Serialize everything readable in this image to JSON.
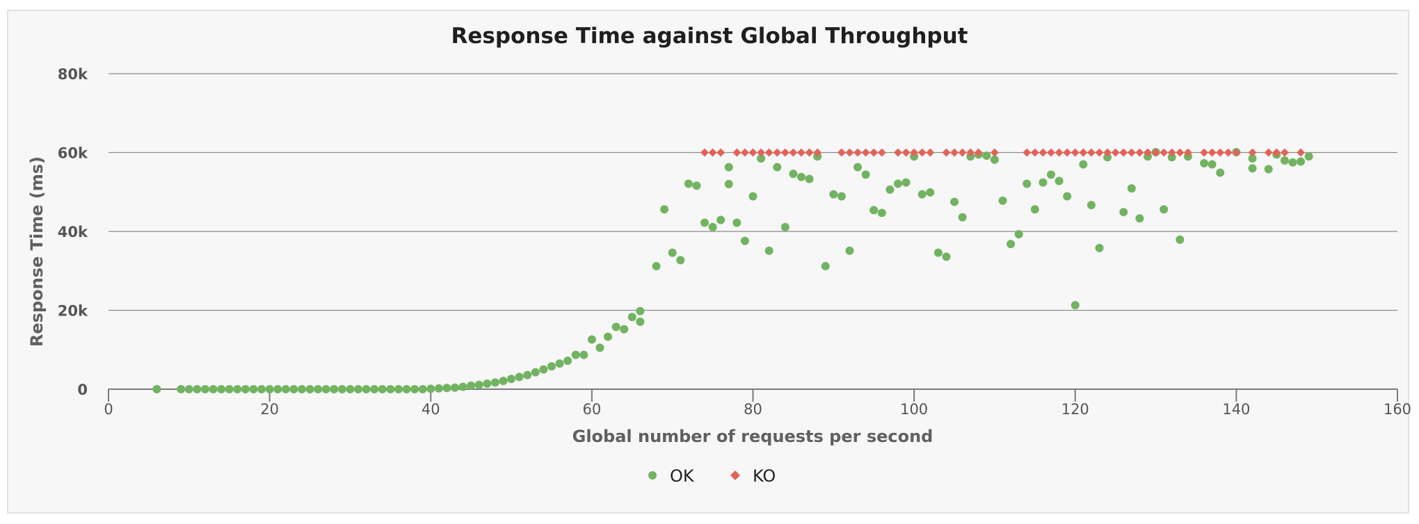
{
  "chart_data": {
    "type": "scatter",
    "title": "Response Time against Global Throughput",
    "xlabel": "Global number of requests per second",
    "ylabel": "Response Time (ms)",
    "xlim": [
      0,
      160
    ],
    "ylim": [
      0,
      80000
    ],
    "x_ticks": [
      "0",
      "20",
      "40",
      "60",
      "80",
      "100",
      "120",
      "140",
      "160"
    ],
    "y_ticks": [
      "0",
      "20k",
      "40k",
      "60k",
      "80k"
    ],
    "grid": true,
    "legend_position": "bottom-center",
    "series": [
      {
        "name": "OK",
        "color": "#72b362",
        "marker": "circle",
        "points": [
          [
            6,
            0
          ],
          [
            9,
            0
          ],
          [
            10,
            0
          ],
          [
            11,
            0
          ],
          [
            12,
            0
          ],
          [
            13,
            0
          ],
          [
            14,
            0
          ],
          [
            15,
            0
          ],
          [
            16,
            0
          ],
          [
            17,
            0
          ],
          [
            18,
            0
          ],
          [
            19,
            0
          ],
          [
            20,
            0
          ],
          [
            21,
            0
          ],
          [
            22,
            0
          ],
          [
            23,
            0
          ],
          [
            24,
            0
          ],
          [
            25,
            0
          ],
          [
            26,
            0
          ],
          [
            27,
            0
          ],
          [
            28,
            0
          ],
          [
            29,
            0
          ],
          [
            30,
            0
          ],
          [
            31,
            0
          ],
          [
            32,
            0
          ],
          [
            33,
            0
          ],
          [
            34,
            0
          ],
          [
            35,
            0
          ],
          [
            36,
            0
          ],
          [
            37,
            0
          ],
          [
            38,
            0
          ],
          [
            39,
            0
          ],
          [
            40,
            100
          ],
          [
            41,
            200
          ],
          [
            42,
            300
          ],
          [
            43,
            400
          ],
          [
            44,
            600
          ],
          [
            45,
            900
          ],
          [
            46,
            1100
          ],
          [
            47,
            1400
          ],
          [
            48,
            1700
          ],
          [
            49,
            2100
          ],
          [
            50,
            2600
          ],
          [
            51,
            3100
          ],
          [
            52,
            3600
          ],
          [
            53,
            4300
          ],
          [
            54,
            5000
          ],
          [
            55,
            5800
          ],
          [
            56,
            6500
          ],
          [
            57,
            7200
          ],
          [
            58,
            8700
          ],
          [
            59,
            8700
          ],
          [
            60,
            12600
          ],
          [
            61,
            10500
          ],
          [
            62,
            13300
          ],
          [
            63,
            15800
          ],
          [
            64,
            15200
          ],
          [
            65,
            18300
          ],
          [
            66,
            17100
          ],
          [
            66,
            19800
          ],
          [
            68,
            31200
          ],
          [
            69,
            45600
          ],
          [
            70,
            34600
          ],
          [
            71,
            32700
          ],
          [
            72,
            52100
          ],
          [
            73,
            51600
          ],
          [
            74,
            42200
          ],
          [
            75,
            41100
          ],
          [
            76,
            42900
          ],
          [
            77,
            56300
          ],
          [
            77,
            52000
          ],
          [
            78,
            42200
          ],
          [
            79,
            37600
          ],
          [
            80,
            48900
          ],
          [
            81,
            58500
          ],
          [
            82,
            35100
          ],
          [
            83,
            56300
          ],
          [
            84,
            41100
          ],
          [
            85,
            54600
          ],
          [
            86,
            53800
          ],
          [
            87,
            53300
          ],
          [
            88,
            59000
          ],
          [
            89,
            31200
          ],
          [
            90,
            49400
          ],
          [
            91,
            48900
          ],
          [
            92,
            35100
          ],
          [
            93,
            56300
          ],
          [
            94,
            54400
          ],
          [
            95,
            45400
          ],
          [
            96,
            44700
          ],
          [
            97,
            50600
          ],
          [
            98,
            52100
          ],
          [
            99,
            52400
          ],
          [
            100,
            59000
          ],
          [
            101,
            49400
          ],
          [
            102,
            49900
          ],
          [
            103,
            34600
          ],
          [
            104,
            33600
          ],
          [
            105,
            47500
          ],
          [
            106,
            43600
          ],
          [
            107,
            59000
          ],
          [
            108,
            59500
          ],
          [
            109,
            59200
          ],
          [
            110,
            58200
          ],
          [
            111,
            47800
          ],
          [
            112,
            36800
          ],
          [
            113,
            39300
          ],
          [
            114,
            52100
          ],
          [
            115,
            45600
          ],
          [
            116,
            52400
          ],
          [
            117,
            54400
          ],
          [
            118,
            52800
          ],
          [
            119,
            48900
          ],
          [
            120,
            21300
          ],
          [
            121,
            57000
          ],
          [
            122,
            46700
          ],
          [
            123,
            35800
          ],
          [
            124,
            58800
          ],
          [
            126,
            44900
          ],
          [
            127,
            50900
          ],
          [
            128,
            43300
          ],
          [
            129,
            59000
          ],
          [
            130,
            60100
          ],
          [
            131,
            45600
          ],
          [
            132,
            58800
          ],
          [
            133,
            37900
          ],
          [
            134,
            59000
          ],
          [
            136,
            57300
          ],
          [
            137,
            57000
          ],
          [
            138,
            54900
          ],
          [
            140,
            60100
          ],
          [
            142,
            58500
          ],
          [
            142,
            56000
          ],
          [
            144,
            55800
          ],
          [
            145,
            59500
          ],
          [
            146,
            58000
          ],
          [
            147,
            57500
          ],
          [
            148,
            57700
          ],
          [
            149,
            59000
          ]
        ]
      },
      {
        "name": "KO",
        "color": "#e0645a",
        "marker": "diamond",
        "points": [
          [
            74,
            60000
          ],
          [
            75,
            60000
          ],
          [
            76,
            60000
          ],
          [
            78,
            60000
          ],
          [
            79,
            60000
          ],
          [
            80,
            60000
          ],
          [
            81,
            60000
          ],
          [
            82,
            60000
          ],
          [
            83,
            60000
          ],
          [
            84,
            60000
          ],
          [
            85,
            60000
          ],
          [
            86,
            60000
          ],
          [
            87,
            60000
          ],
          [
            88,
            60000
          ],
          [
            91,
            60000
          ],
          [
            92,
            60000
          ],
          [
            93,
            60000
          ],
          [
            94,
            60000
          ],
          [
            95,
            60000
          ],
          [
            96,
            60000
          ],
          [
            98,
            60000
          ],
          [
            99,
            60000
          ],
          [
            100,
            60000
          ],
          [
            101,
            60000
          ],
          [
            102,
            60000
          ],
          [
            104,
            60000
          ],
          [
            105,
            60000
          ],
          [
            106,
            60000
          ],
          [
            107,
            60000
          ],
          [
            108,
            60000
          ],
          [
            110,
            60000
          ],
          [
            114,
            60000
          ],
          [
            115,
            60000
          ],
          [
            116,
            60000
          ],
          [
            117,
            60000
          ],
          [
            118,
            60000
          ],
          [
            119,
            60000
          ],
          [
            120,
            60000
          ],
          [
            121,
            60000
          ],
          [
            122,
            60000
          ],
          [
            123,
            60000
          ],
          [
            124,
            60000
          ],
          [
            125,
            60000
          ],
          [
            126,
            60000
          ],
          [
            127,
            60000
          ],
          [
            128,
            60000
          ],
          [
            129,
            60000
          ],
          [
            130,
            60000
          ],
          [
            131,
            60000
          ],
          [
            132,
            60000
          ],
          [
            133,
            60000
          ],
          [
            134,
            60000
          ],
          [
            136,
            60000
          ],
          [
            137,
            60000
          ],
          [
            138,
            60000
          ],
          [
            139,
            60000
          ],
          [
            140,
            60000
          ],
          [
            142,
            60000
          ],
          [
            144,
            60000
          ],
          [
            145,
            60000
          ],
          [
            146,
            60000
          ],
          [
            148,
            60000
          ]
        ]
      }
    ]
  }
}
